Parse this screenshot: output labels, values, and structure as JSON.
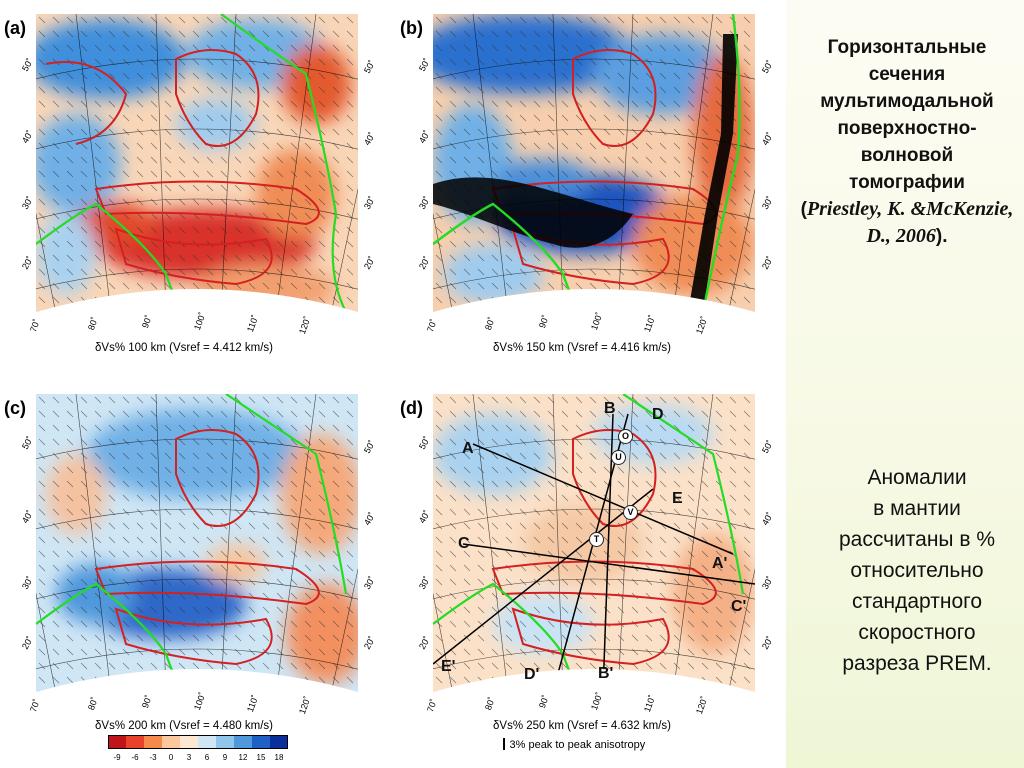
{
  "sidebar": {
    "title_lines": [
      "Горизонтальные",
      "сечения",
      "мультимодальной",
      "поверхностно-",
      "волновой",
      "томографии"
    ],
    "citation_open": "(",
    "citation_italic": "Priestley, K. &McKenzie, D., 2006",
    "citation_close": ").",
    "body_lines": [
      "Аномалии",
      "в мантии",
      "рассчитаны в  %",
      "относительно",
      "стандартного",
      "скоростного",
      "разреза PREM."
    ]
  },
  "panels": [
    {
      "label": "(a)",
      "caption": "δVs% 100 km (Vsref =   4.412   km/s)"
    },
    {
      "label": "(b)",
      "caption": "δVs% 150 km (Vsref =   4.416   km/s)"
    },
    {
      "label": "(c)",
      "caption": "δVs% 200 km (Vsref =   4.480   km/s)"
    },
    {
      "label": "(d)",
      "caption": "δVs% 250 km (Vsref =   4.632   km/s)"
    }
  ],
  "lon_ticks": [
    "70˚",
    "80˚",
    "90˚",
    "100˚",
    "110˚",
    "120˚"
  ],
  "lat_ticks_left": [
    "50˚",
    "40˚",
    "30˚",
    "20˚"
  ],
  "lat_ticks_right": [
    "50˚",
    "40˚",
    "30˚",
    "20˚"
  ],
  "colorbar": {
    "ticks": [
      "-9",
      "-6",
      "-3",
      "0",
      "3",
      "6",
      "9",
      "12",
      "15",
      "18"
    ],
    "colors": [
      "#c0141a",
      "#e8432a",
      "#f58a4c",
      "#fbc79c",
      "#fbe7d2",
      "#cfe6f5",
      "#90c6ec",
      "#4f98dc",
      "#2060c4",
      "#0b2f9a"
    ]
  },
  "anisotropy_label": "3% peak to peak anisotropy",
  "profiles": {
    "labels": [
      "A",
      "A'",
      "B",
      "B'",
      "C",
      "C'",
      "D",
      "D'",
      "E",
      "E'"
    ],
    "intersections": [
      "O",
      "U",
      "V",
      "T"
    ]
  },
  "colors": {
    "block_boundary": "#d42020",
    "plate_boundary": "#22dd22",
    "seismicity": "#000000"
  }
}
